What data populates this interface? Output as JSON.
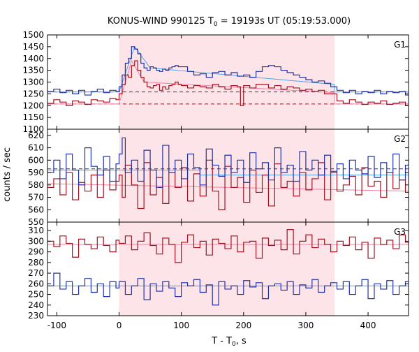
{
  "chart_data": {
    "type": "line",
    "title_main": "KONUS-WIND 990125 T",
    "title_sub": "0",
    "title_rest": " = 19193s UT (05:19:53.000)",
    "xlabel_main": "T - T",
    "xlabel_sub": "0",
    "xlabel_rest": ", s",
    "ylabel": "counts / sec",
    "xlim": [
      -115,
      465
    ],
    "xticks": [
      -100,
      0,
      100,
      200,
      300,
      400
    ],
    "shaded_interval": [
      0,
      346
    ],
    "colors": {
      "shade": "#fde4e8",
      "red": "#a3121f",
      "blue": "#2232a8",
      "lightblue": "#4da6e6",
      "pink": "#ef7fa6"
    },
    "panels": [
      {
        "label": "G1",
        "ylim": [
          1100,
          1500
        ],
        "yticks": [
          1100,
          1150,
          1200,
          1250,
          1300,
          1350,
          1400,
          1450,
          1500
        ],
        "bg_red": 1207,
        "bg_blue": 1258,
        "series": [
          {
            "color": "red",
            "x": [
              -115,
              -105,
              -95,
              -85,
              -75,
              -65,
              -55,
              -45,
              -35,
              -25,
              -15,
              -5,
              0,
              5,
              10,
              15,
              20,
              25,
              30,
              35,
              40,
              45,
              50,
              55,
              60,
              65,
              70,
              75,
              80,
              85,
              90,
              95,
              100,
              110,
              120,
              130,
              140,
              150,
              160,
              170,
              180,
              190,
              195,
              200,
              210,
              220,
              230,
              240,
              250,
              260,
              270,
              280,
              290,
              300,
              310,
              320,
              330,
              340,
              350,
              360,
              370,
              380,
              390,
              400,
              410,
              420,
              430,
              440,
              450,
              460,
              465
            ],
            "y": [
              1210,
              1225,
              1215,
              1200,
              1220,
              1215,
              1205,
              1225,
              1220,
              1215,
              1230,
              1225,
              1250,
              1290,
              1330,
              1320,
              1370,
              1390,
              1350,
              1320,
              1300,
              1280,
              1275,
              1285,
              1290,
              1265,
              1280,
              1270,
              1285,
              1290,
              1300,
              1290,
              1285,
              1275,
              1285,
              1280,
              1275,
              1290,
              1280,
              1270,
              1285,
              1280,
              1200,
              1285,
              1275,
              1290,
              1290,
              1275,
              1285,
              1270,
              1280,
              1275,
              1265,
              1270,
              1260,
              1265,
              1250,
              1250,
              1220,
              1210,
              1225,
              1215,
              1205,
              1215,
              1210,
              1220,
              1205,
              1210,
              1215,
              1200,
              1200
            ]
          },
          {
            "color": "blue",
            "x": [
              -115,
              -105,
              -95,
              -85,
              -75,
              -65,
              -55,
              -45,
              -35,
              -25,
              -15,
              -5,
              0,
              5,
              10,
              15,
              20,
              25,
              30,
              35,
              40,
              45,
              50,
              55,
              60,
              65,
              70,
              75,
              80,
              85,
              90,
              95,
              100,
              110,
              120,
              130,
              140,
              150,
              160,
              170,
              180,
              190,
              200,
              210,
              220,
              230,
              240,
              250,
              260,
              270,
              280,
              290,
              300,
              310,
              320,
              330,
              340,
              350,
              360,
              370,
              380,
              390,
              400,
              410,
              420,
              430,
              440,
              450,
              460,
              465
            ],
            "y": [
              1260,
              1270,
              1255,
              1265,
              1250,
              1265,
              1245,
              1260,
              1270,
              1255,
              1265,
              1260,
              1280,
              1330,
              1380,
              1400,
              1450,
              1440,
              1420,
              1380,
              1360,
              1350,
              1365,
              1360,
              1350,
              1345,
              1355,
              1350,
              1360,
              1365,
              1370,
              1365,
              1365,
              1345,
              1330,
              1335,
              1320,
              1340,
              1345,
              1330,
              1340,
              1325,
              1330,
              1320,
              1345,
              1365,
              1370,
              1365,
              1350,
              1340,
              1330,
              1320,
              1310,
              1300,
              1305,
              1295,
              1280,
              1265,
              1255,
              1265,
              1250,
              1260,
              1255,
              1265,
              1250,
              1260,
              1255,
              1260,
              1245,
              1245
            ]
          }
        ],
        "model_red": [
          [
            -115,
            1207
          ],
          [
            0,
            1207
          ],
          [
            20,
            1390
          ],
          [
            40,
            1300
          ],
          [
            346,
            1255
          ],
          [
            346,
            1207
          ],
          [
            465,
            1207
          ]
        ],
        "model_blue": [
          [
            -115,
            1258
          ],
          [
            0,
            1258
          ],
          [
            25,
            1450
          ],
          [
            50,
            1360
          ],
          [
            346,
            1290
          ],
          [
            346,
            1258
          ],
          [
            465,
            1258
          ]
        ]
      },
      {
        "label": "G2",
        "ylim": [
          550,
          625
        ],
        "yticks": [
          550,
          560,
          570,
          580,
          590,
          600,
          610,
          620
        ],
        "bg_red": null,
        "bg_blue": 593,
        "series": [
          {
            "color": "red",
            "x": [
              -115,
              -105,
              -95,
              -85,
              -75,
              -65,
              -55,
              -45,
              -35,
              -25,
              -15,
              -5,
              0,
              5,
              10,
              20,
              30,
              40,
              50,
              60,
              70,
              80,
              90,
              100,
              110,
              120,
              130,
              140,
              150,
              160,
              170,
              180,
              190,
              200,
              210,
              220,
              230,
              240,
              250,
              260,
              270,
              280,
              290,
              300,
              310,
              320,
              330,
              340,
              350,
              360,
              370,
              380,
              390,
              400,
              410,
              420,
              430,
              440,
              450,
              460,
              465
            ],
            "y": [
              578,
              585,
              572,
              590,
              568,
              582,
              575,
              588,
              570,
              592,
              576,
              583,
              588,
              570,
              596,
              580,
              561,
              598,
              572,
              586,
              565,
              590,
              578,
              594,
              567,
              589,
              571,
              600,
              575,
              560,
              595,
              578,
              586,
              566,
              592,
              574,
              588,
              563,
              597,
              578,
              583,
              571,
              590,
              576,
              585,
              598,
              568,
              591,
              575,
              580,
              587,
              572,
              594,
              579,
              583,
              570,
              590,
              577,
              584,
              574,
              574
            ]
          },
          {
            "color": "blue",
            "x": [
              -115,
              -105,
              -95,
              -85,
              -75,
              -65,
              -55,
              -45,
              -35,
              -25,
              -15,
              -5,
              0,
              5,
              10,
              20,
              30,
              40,
              50,
              60,
              70,
              80,
              90,
              100,
              110,
              120,
              130,
              140,
              150,
              160,
              170,
              180,
              190,
              200,
              210,
              220,
              230,
              240,
              250,
              260,
              270,
              280,
              290,
              300,
              310,
              320,
              330,
              340,
              350,
              360,
              370,
              380,
              390,
              400,
              410,
              420,
              430,
              440,
              450,
              460,
              465
            ],
            "y": [
              590,
              600,
              585,
              605,
              592,
              580,
              610,
              595,
              588,
              603,
              583,
              597,
              605,
              618,
              590,
              600,
              583,
              608,
              592,
              578,
              612,
              590,
              600,
              585,
              605,
              594,
              580,
              609,
              596,
              587,
              604,
              590,
              600,
              582,
              606,
              593,
              598,
              584,
              610,
              590,
              596,
              583,
              607,
              592,
              600,
              588,
              604,
              590,
              597,
              585,
              600,
              592,
              589,
              603,
              586,
              598,
              590,
              605,
              584,
              596,
              596
            ]
          }
        ],
        "model_red": [
          [
            -115,
            581
          ],
          [
            465,
            575
          ]
        ],
        "model_blue": [
          [
            -115,
            592
          ],
          [
            130,
            592
          ],
          [
            130,
            588
          ],
          [
            465,
            588
          ]
        ]
      },
      {
        "label": "G3",
        "ylim": [
          230,
          318
        ],
        "yticks": [
          230,
          240,
          250,
          260,
          270,
          280,
          290,
          300,
          310
        ],
        "bg_red": null,
        "bg_blue": null,
        "series": [
          {
            "color": "red",
            "x": [
              -115,
              -105,
              -95,
              -85,
              -75,
              -65,
              -55,
              -45,
              -35,
              -25,
              -15,
              -5,
              0,
              10,
              20,
              30,
              40,
              50,
              60,
              70,
              80,
              90,
              100,
              110,
              120,
              130,
              140,
              150,
              160,
              170,
              180,
              190,
              200,
              210,
              220,
              230,
              240,
              250,
              260,
              270,
              280,
              290,
              300,
              310,
              320,
              330,
              340,
              350,
              360,
              370,
              380,
              390,
              400,
              410,
              420,
              430,
              440,
              450,
              460,
              465
            ],
            "y": [
              300,
              295,
              305,
              298,
              285,
              302,
              297,
              293,
              304,
              296,
              290,
              301,
              298,
              305,
              292,
              300,
              308,
              296,
              288,
              303,
              297,
              280,
              299,
              306,
              294,
              300,
              287,
              302,
              298,
              293,
              305,
              290,
              299,
              300,
              284,
              303,
              296,
              301,
              292,
              311,
              288,
              300,
              306,
              294,
              302,
              297,
              290,
              300,
              296,
              304,
              292,
              299,
              284,
              303,
              297,
              301,
              293,
              306,
              299,
              299
            ]
          },
          {
            "color": "blue",
            "x": [
              -115,
              -105,
              -95,
              -85,
              -75,
              -65,
              -55,
              -45,
              -35,
              -25,
              -15,
              -5,
              0,
              10,
              20,
              30,
              40,
              50,
              60,
              70,
              80,
              90,
              100,
              110,
              120,
              130,
              140,
              150,
              160,
              170,
              180,
              190,
              200,
              210,
              220,
              230,
              240,
              250,
              260,
              270,
              280,
              290,
              300,
              310,
              320,
              330,
              340,
              350,
              360,
              370,
              380,
              390,
              400,
              410,
              420,
              430,
              440,
              450,
              460,
              465
            ],
            "y": [
              258,
              270,
              255,
              262,
              250,
              258,
              265,
              252,
              260,
              248,
              262,
              256,
              262,
              250,
              258,
              265,
              245,
              260,
              253,
              262,
              256,
              248,
              261,
              258,
              264,
              252,
              259,
              240,
              262,
              255,
              258,
              250,
              263,
              257,
              261,
              246,
              258,
              260,
              254,
              262,
              250,
              259,
              256,
              264,
              252,
              258,
              261,
              255,
              262,
              250,
              258,
              264,
              246,
              260,
              255,
              263,
              250,
              258,
              262,
              262
            ]
          }
        ],
        "model_red": [
          [
            -115,
            297
          ],
          [
            465,
            297
          ]
        ],
        "model_blue": [
          [
            -115,
            258
          ],
          [
            465,
            258
          ]
        ]
      }
    ]
  }
}
